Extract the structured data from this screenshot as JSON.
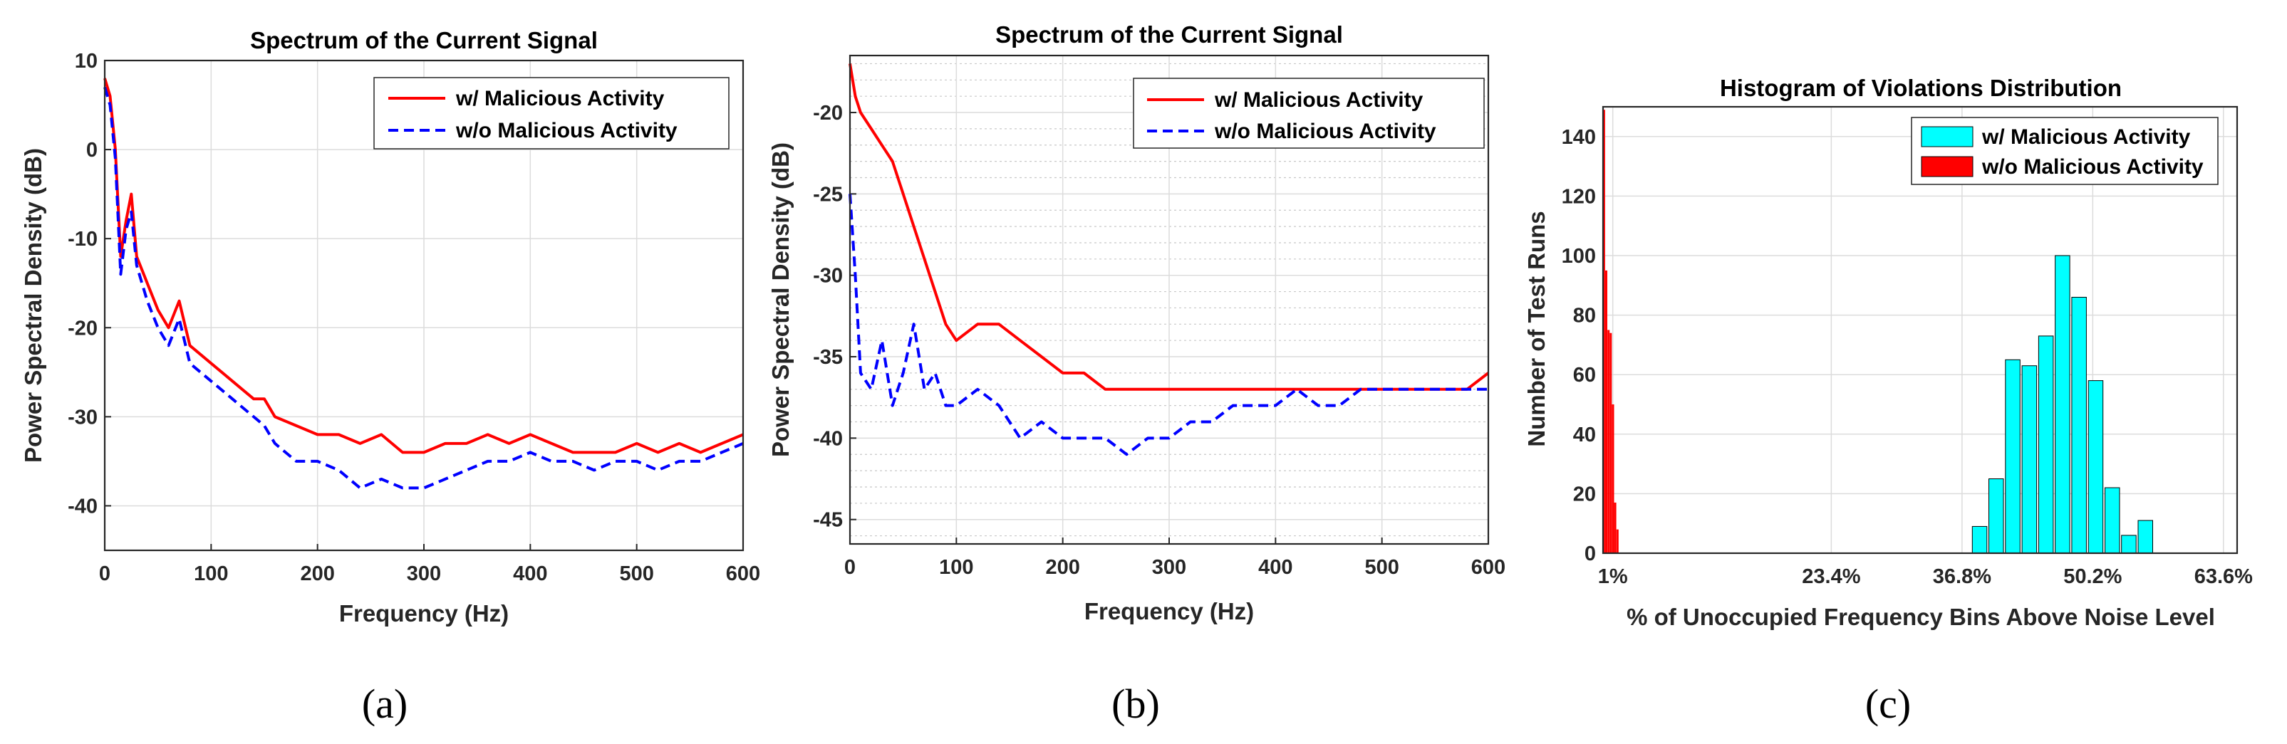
{
  "figure": {
    "captions": [
      "(a)",
      "(b)",
      "(c)"
    ]
  },
  "chart_data": [
    {
      "id": "a",
      "type": "line",
      "title": "Spectrum of the Current Signal",
      "xlabel": "Frequency (Hz)",
      "ylabel": "Power Spectral Density (dB)",
      "xlim": [
        0,
        600
      ],
      "ylim": [
        -45,
        10
      ],
      "xticks": [
        0,
        100,
        200,
        300,
        400,
        500,
        600
      ],
      "yticks": [
        -40,
        -30,
        -20,
        -10,
        0,
        10
      ],
      "legend_position": "top-right",
      "series": [
        {
          "name": "w/ Malicious Activity",
          "color": "#ff0000",
          "style": "solid",
          "x": [
            0,
            5,
            10,
            15,
            20,
            25,
            30,
            40,
            50,
            60,
            70,
            80,
            90,
            100,
            110,
            120,
            130,
            140,
            150,
            160,
            180,
            200,
            220,
            240,
            260,
            280,
            300,
            320,
            340,
            360,
            380,
            400,
            420,
            440,
            460,
            480,
            500,
            520,
            540,
            560,
            580,
            600
          ],
          "y": [
            8,
            6,
            0,
            -12,
            -8,
            -5,
            -12,
            -15,
            -18,
            -20,
            -17,
            -22,
            -23,
            -24,
            -25,
            -26,
            -27,
            -28,
            -28,
            -30,
            -31,
            -32,
            -32,
            -33,
            -32,
            -34,
            -34,
            -33,
            -33,
            -32,
            -33,
            -32,
            -33,
            -34,
            -34,
            -34,
            -33,
            -34,
            -33,
            -34,
            -33,
            -32
          ]
        },
        {
          "name": "w/o Malicious Activity",
          "color": "#0000ff",
          "style": "dashed",
          "x": [
            0,
            5,
            10,
            15,
            20,
            25,
            30,
            40,
            50,
            60,
            70,
            80,
            90,
            100,
            110,
            120,
            130,
            140,
            150,
            160,
            180,
            200,
            220,
            240,
            260,
            280,
            300,
            320,
            340,
            360,
            380,
            400,
            420,
            440,
            460,
            480,
            500,
            520,
            540,
            560,
            580,
            600
          ],
          "y": [
            7,
            5,
            -1,
            -14,
            -9,
            -7,
            -13,
            -17,
            -20,
            -22,
            -19,
            -24,
            -25,
            -26,
            -27,
            -28,
            -29,
            -30,
            -31,
            -33,
            -35,
            -35,
            -36,
            -38,
            -37,
            -38,
            -38,
            -37,
            -36,
            -35,
            -35,
            -34,
            -35,
            -35,
            -36,
            -35,
            -35,
            -36,
            -35,
            -35,
            -34,
            -33
          ]
        }
      ]
    },
    {
      "id": "b",
      "type": "line",
      "title": "Spectrum of the Current Signal",
      "xlabel": "Frequency (Hz)",
      "ylabel": "Power Spectral Density (dB)",
      "xlim": [
        0,
        600
      ],
      "ylim": [
        -46.5,
        -16.5
      ],
      "xticks": [
        0,
        100,
        200,
        300,
        400,
        500,
        600
      ],
      "yticks": [
        -45,
        -40,
        -35,
        -30,
        -25,
        -20
      ],
      "legend_position": "top-right",
      "series": [
        {
          "name": "w/ Malicious Activity",
          "color": "#ff0000",
          "style": "solid",
          "x": [
            0,
            5,
            10,
            20,
            30,
            40,
            50,
            60,
            70,
            80,
            90,
            100,
            120,
            140,
            160,
            180,
            200,
            220,
            240,
            260,
            280,
            300,
            320,
            340,
            360,
            380,
            400,
            420,
            440,
            460,
            480,
            500,
            520,
            540,
            560,
            580,
            600
          ],
          "y": [
            -17,
            -19,
            -20,
            -21,
            -22,
            -23,
            -25,
            -27,
            -29,
            -31,
            -33,
            -34,
            -33,
            -33,
            -34,
            -35,
            -36,
            -36,
            -37,
            -37,
            -37,
            -37,
            -37,
            -37,
            -37,
            -37,
            -37,
            -37,
            -37,
            -37,
            -37,
            -37,
            -37,
            -37,
            -37,
            -37,
            -36
          ]
        },
        {
          "name": "w/o Malicious Activity",
          "color": "#0000ff",
          "style": "dashed",
          "x": [
            0,
            5,
            10,
            20,
            30,
            40,
            50,
            60,
            70,
            80,
            90,
            100,
            120,
            140,
            160,
            180,
            200,
            220,
            240,
            260,
            280,
            300,
            320,
            340,
            360,
            380,
            400,
            420,
            440,
            460,
            480,
            500,
            520,
            540,
            560,
            580,
            600
          ],
          "y": [
            -25,
            -30,
            -36,
            -37,
            -34,
            -38,
            -36,
            -33,
            -37,
            -36,
            -38,
            -38,
            -37,
            -38,
            -40,
            -39,
            -40,
            -40,
            -40,
            -41,
            -40,
            -40,
            -39,
            -39,
            -38,
            -38,
            -38,
            -37,
            -38,
            -38,
            -37,
            -37,
            -37,
            -37,
            -37,
            -37,
            -37
          ]
        }
      ]
    },
    {
      "id": "c",
      "type": "bar",
      "title": "Histogram of Violations Distribution",
      "xlabel": "% of Unoccupied Frequency Bins Above Noise Level",
      "ylabel": "Number of Test Runs",
      "xlim": [
        0,
        65
      ],
      "ylim": [
        0,
        150
      ],
      "xtick_values": [
        1,
        23.4,
        36.8,
        50.2,
        63.6
      ],
      "xtick_labels": [
        "1%",
        "23.4%",
        "36.8%",
        "50.2%",
        "63.6%"
      ],
      "yticks": [
        0,
        20,
        40,
        60,
        80,
        100,
        120,
        140
      ],
      "legend_position": "top-right",
      "series": [
        {
          "name": "w/ Malicious Activity",
          "color": "#00ffff",
          "bin_width": 1.5,
          "bins": [
            38.6,
            40.3,
            42.0,
            43.7,
            45.4,
            47.1,
            48.8,
            50.5,
            52.2,
            53.9,
            55.6
          ],
          "values": [
            9,
            25,
            65,
            63,
            73,
            100,
            86,
            58,
            22,
            6,
            11
          ]
        },
        {
          "name": "w/o Malicious Activity",
          "color": "#ff0000",
          "bin_width": 0.22,
          "bins": [
            0.1,
            0.33,
            0.56,
            0.79,
            1.02,
            1.25,
            1.48
          ],
          "values": [
            149,
            95,
            75,
            74,
            50,
            17,
            8
          ]
        }
      ]
    }
  ]
}
